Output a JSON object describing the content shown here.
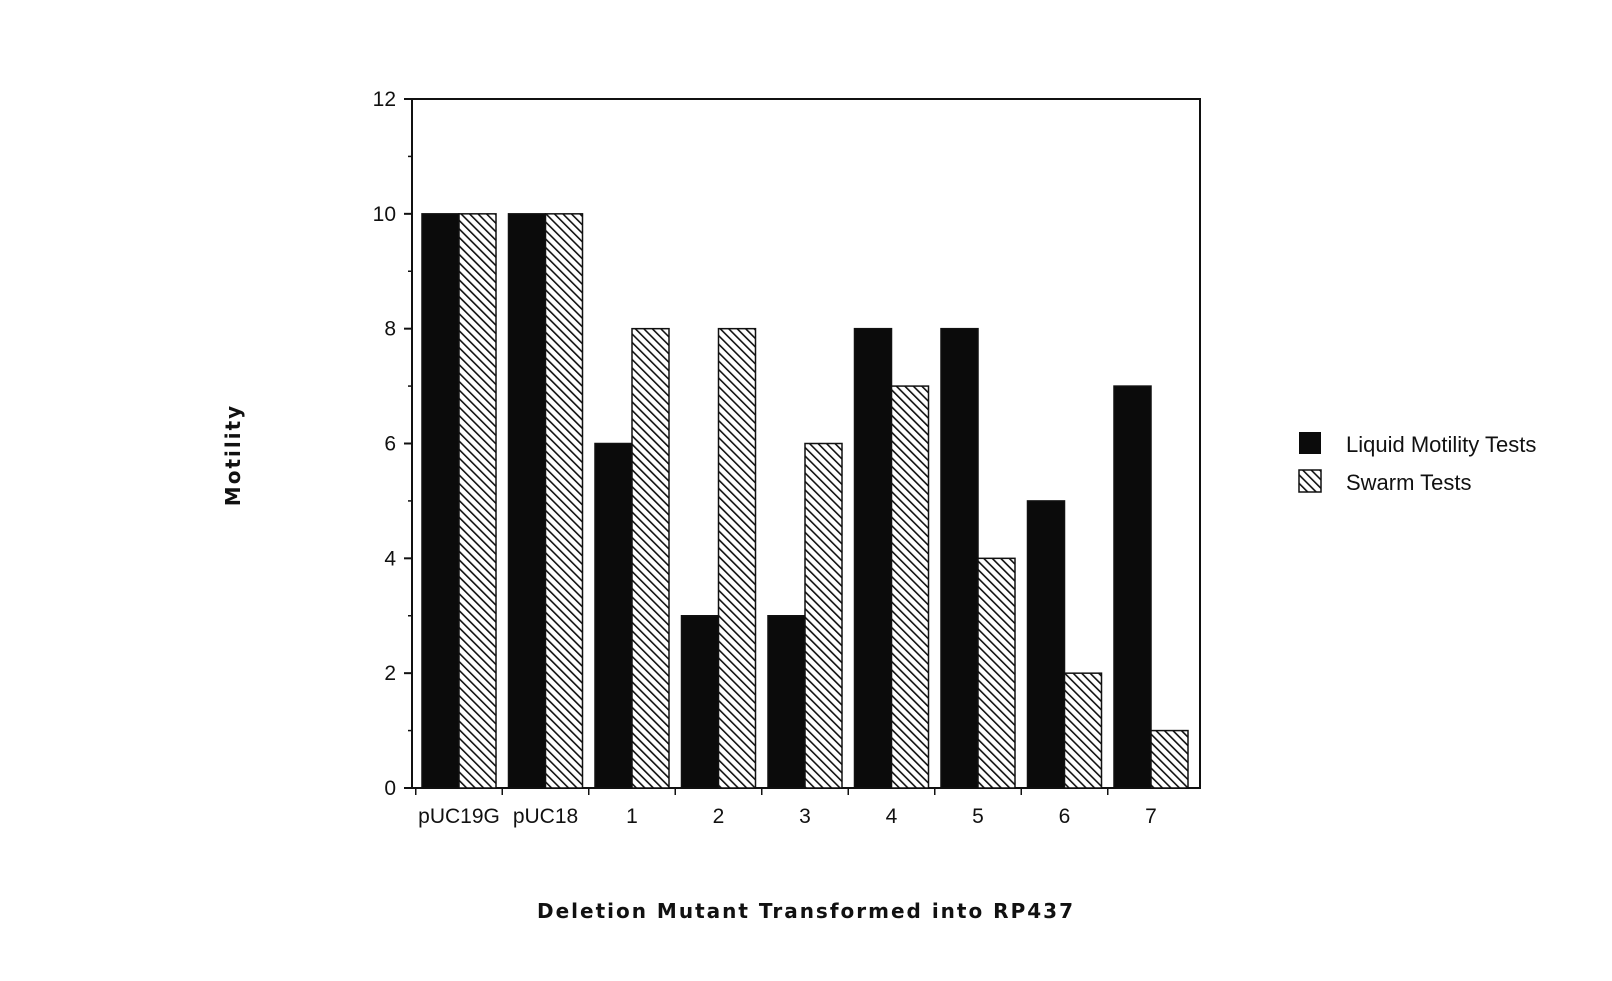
{
  "chart_data": {
    "type": "bar",
    "title": "",
    "xlabel": "Deletion Mutant Transformed into RP437",
    "ylabel": "Motility",
    "ylim": [
      0,
      12
    ],
    "yticks": [
      0,
      2,
      4,
      6,
      8,
      10,
      12
    ],
    "categories": [
      "pUC19G",
      "pUC18",
      "1",
      "2",
      "3",
      "4",
      "5",
      "6",
      "7"
    ],
    "series": [
      {
        "name": "Liquid Motility Tests",
        "values": [
          10,
          10,
          6,
          3,
          3,
          8,
          8,
          5,
          7
        ],
        "fill": "solid-black"
      },
      {
        "name": "Swarm Tests",
        "values": [
          10,
          10,
          8,
          8,
          6,
          7,
          4,
          2,
          1
        ],
        "fill": "diagonal-hatch"
      }
    ],
    "grid": false,
    "legend_position": "right",
    "colors": {
      "bar": "#0b0b0b",
      "hatch": "#111111",
      "background": "#ffffff"
    }
  }
}
